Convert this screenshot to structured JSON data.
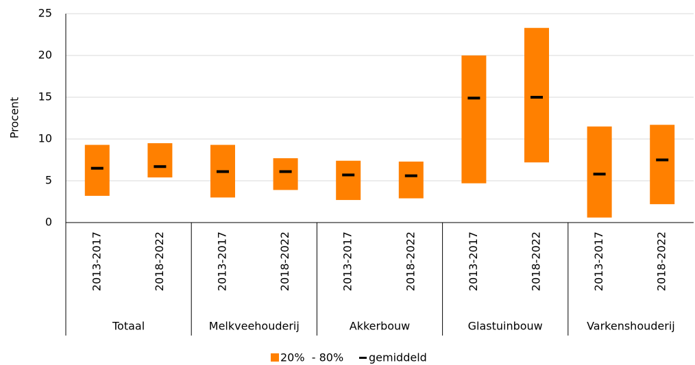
{
  "chart_data": {
    "type": "range_bar",
    "y_label": "Procent",
    "groups": [
      "Totaal",
      "Melkveehouderij",
      "Akkerbouw",
      "Glastuinbouw",
      "Varkenshouderij"
    ],
    "categories": [
      "2013-2017",
      "2018-2022",
      "2013-2017",
      "2018-2022",
      "2013-2017",
      "2018-2022",
      "2013-2017",
      "2018-2022",
      "2013-2017",
      "2018-2022"
    ],
    "series": [
      {
        "name": "20%  - 80%",
        "color": "#ff8000",
        "low": [
          3.2,
          5.4,
          3.0,
          3.9,
          2.7,
          2.9,
          4.7,
          7.2,
          0.6,
          2.2
        ],
        "high": [
          9.3,
          9.5,
          9.3,
          7.7,
          7.4,
          7.3,
          20.0,
          23.3,
          11.5,
          11.7
        ]
      },
      {
        "name": "gemiddeld",
        "color": "#000000",
        "values": [
          6.5,
          6.7,
          6.1,
          6.1,
          5.7,
          5.6,
          14.9,
          15.0,
          5.8,
          7.5
        ]
      }
    ],
    "ylim": [
      0,
      25
    ],
    "yticks": [
      0,
      5,
      10,
      15,
      20,
      25
    ],
    "grid": true,
    "legend": "bottom"
  }
}
